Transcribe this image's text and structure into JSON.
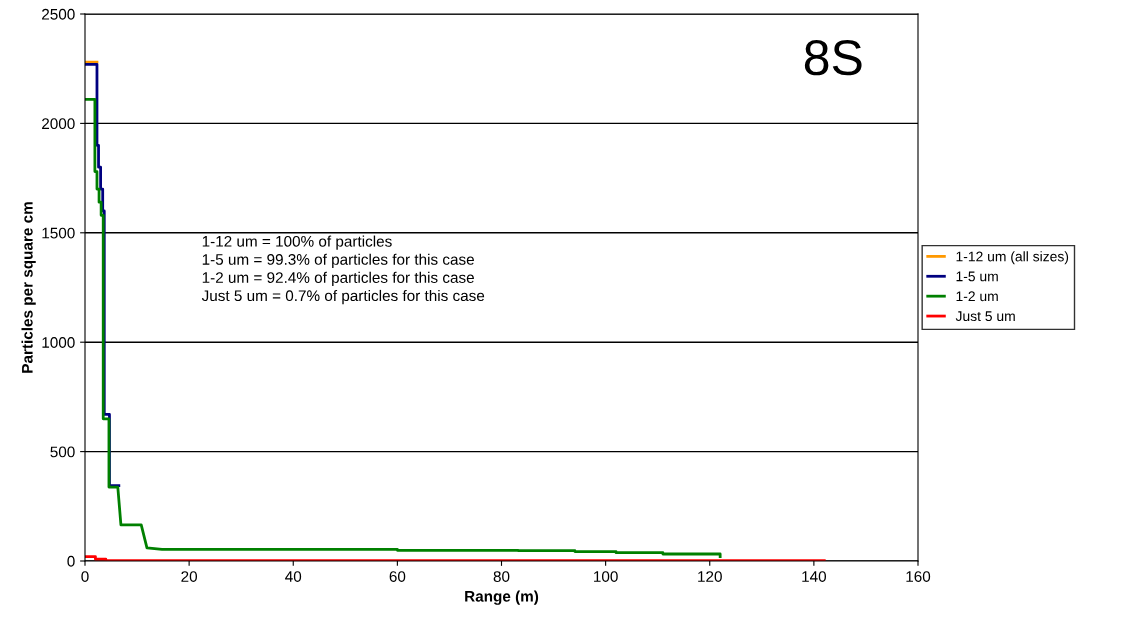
{
  "chart_data": {
    "type": "line",
    "xlabel": "Range (m)",
    "ylabel": "Particles per square cm",
    "xlim": [
      0,
      160
    ],
    "ylim": [
      0,
      2500
    ],
    "xticks": [
      0,
      20,
      40,
      60,
      80,
      100,
      120,
      140,
      160
    ],
    "yticks": [
      0,
      500,
      1000,
      1500,
      2000,
      2500
    ],
    "grid": "y",
    "legend": "right",
    "marker": "none",
    "line_style": "solid",
    "annotations": [
      "8S",
      "1-12 um = 100% of particles\n1-5 um = 99.3% of particles for this case\n1-2 um = 92.4% of particles for this case\nJust 5 um = 0.7% of particles for this case"
    ],
    "series": [
      {
        "name": "1-12 um (all sizes)",
        "color": "#ff9900",
        "x": [
          0,
          2.3
        ],
        "values": [
          2280,
          2280
        ]
      },
      {
        "name": "1-5 um",
        "color": "#000080",
        "x": [
          0,
          2.3,
          2.3,
          2.6,
          2.6,
          3.0,
          3.0,
          3.4,
          3.4,
          3.7,
          3.7,
          4.7,
          4.7,
          6.5
        ],
        "values": [
          2270,
          2270,
          1900,
          1900,
          1800,
          1800,
          1700,
          1700,
          1600,
          1600,
          670,
          670,
          345,
          345
        ]
      },
      {
        "name": "1-2 um",
        "color": "#008000",
        "x": [
          0,
          1.9,
          1.9,
          2.3,
          2.3,
          2.7,
          2.7,
          3.1,
          3.1,
          3.5,
          3.5,
          4.6,
          4.6,
          6.3,
          6.9,
          10.8,
          11.9,
          14.8,
          60,
          60,
          83.2,
          83.2,
          94.1,
          94.1,
          102,
          102,
          111,
          111,
          122,
          122
        ],
        "values": [
          2110,
          2110,
          1780,
          1780,
          1700,
          1700,
          1640,
          1640,
          1580,
          1580,
          650,
          650,
          338,
          338,
          165,
          165,
          60,
          53,
          53,
          49,
          49,
          47,
          47,
          43,
          43,
          38,
          38,
          32,
          32,
          20
        ]
      },
      {
        "name": "Just 5 um",
        "color": "#ff0000",
        "x": [
          0,
          2,
          2,
          4,
          4,
          142
        ],
        "values": [
          20,
          20,
          8,
          8,
          2,
          2
        ]
      }
    ]
  }
}
